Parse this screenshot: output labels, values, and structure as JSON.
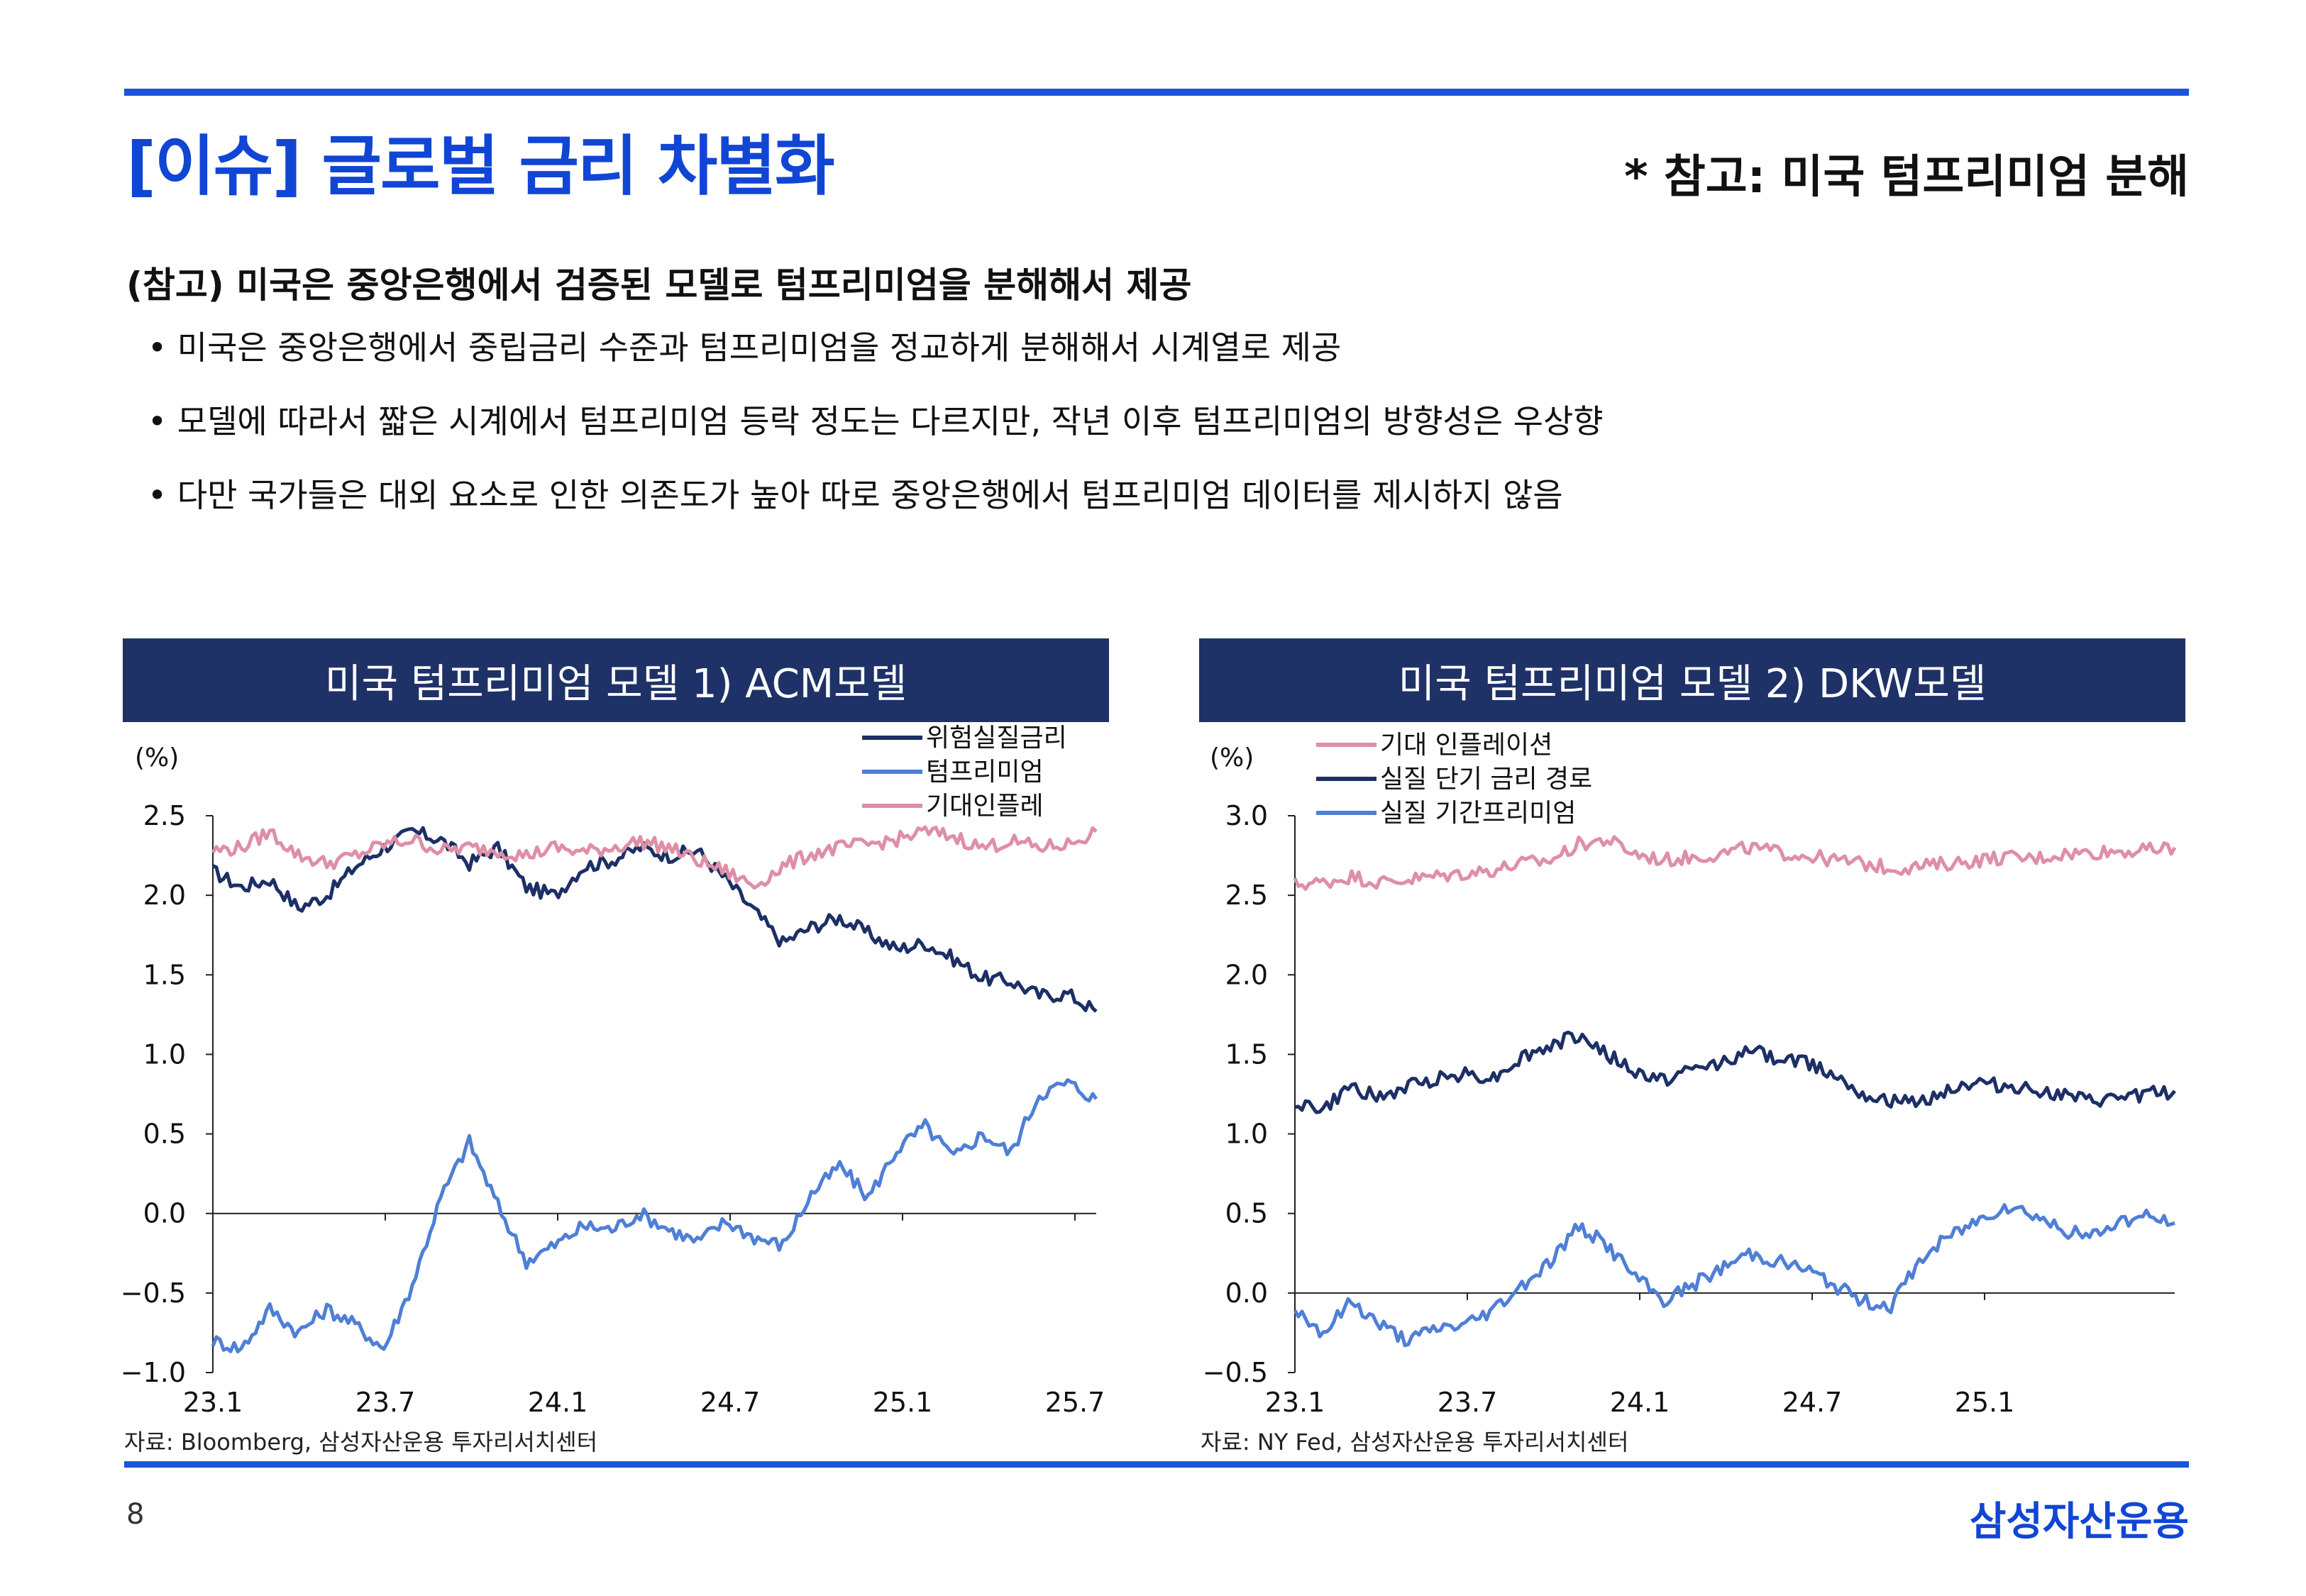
{
  "header": {
    "title": "[이슈] 글로벌 금리 차별화",
    "ref_title": "* 참고: 미국 텀프리미엄 분해"
  },
  "section": {
    "heading": "(참고) 미국은 중앙은행에서 검증된 모델로 텀프리미엄을 분해해서 제공",
    "bullets": [
      "미국은 중앙은행에서 중립금리 수준과 텀프리미엄을 정교하게 분해해서 시계열로 제공",
      "모델에 따라서 짧은 시계에서 텀프리미엄 등락 정도는 다르지만, 작년 이후 텀프리미엄의 방향성은 우상향",
      "다만 국가들은 대외 요소로 인한 의존도가 높아 따로 중앙은행에서 텀프리미엄 데이터를 제시하지 않음"
    ]
  },
  "colors": {
    "accent": "#1146d4",
    "panel_header": "#1f3267",
    "dark_navy": "#1c2f66",
    "blue": "#4f7fd6",
    "pink": "#de8fa6"
  },
  "chart_data": [
    {
      "type": "line",
      "title": "미국 텀프리미엄 모델 1) ACM모델",
      "unit_label": "(%)",
      "source": "자료: Bloomberg, 삼성자산운용 투자리서치센터",
      "x_ticks": [
        "23.1",
        "23.7",
        "24.1",
        "24.7",
        "25.1",
        "25.7"
      ],
      "x_range": [
        "2023-01",
        "2025-08"
      ],
      "y_ticks": [
        "2.5",
        "2.0",
        "1.5",
        "1.0",
        "0.5",
        "0.0",
        "-0.5",
        "-1.0"
      ],
      "ylim": [
        -1.0,
        2.5
      ],
      "zero_line": 0,
      "legend_position": "top-right",
      "x": [
        "2023-01",
        "2023-02",
        "2023-03",
        "2023-04",
        "2023-05",
        "2023-06",
        "2023-07",
        "2023-08",
        "2023-09",
        "2023-10",
        "2023-11",
        "2023-12",
        "2024-01",
        "2024-02",
        "2024-03",
        "2024-04",
        "2024-05",
        "2024-06",
        "2024-07",
        "2024-08",
        "2024-09",
        "2024-10",
        "2024-11",
        "2024-12",
        "2025-01",
        "2025-02",
        "2025-03",
        "2025-04",
        "2025-05",
        "2025-06",
        "2025-07",
        "2025-08"
      ],
      "series": [
        {
          "name": "위험실질금리",
          "color": "#1c2f66",
          "values": [
            2.15,
            2.05,
            2.1,
            1.92,
            2.0,
            2.18,
            2.3,
            2.4,
            2.35,
            2.2,
            2.3,
            2.05,
            2.0,
            2.18,
            2.22,
            2.3,
            2.25,
            2.28,
            2.1,
            1.9,
            1.7,
            1.8,
            1.86,
            1.76,
            1.66,
            1.7,
            1.6,
            1.48,
            1.46,
            1.37,
            1.38,
            1.27
          ]
        },
        {
          "name": "텀프리미엄",
          "color": "#4f7fd6",
          "values": [
            -0.8,
            -0.85,
            -0.6,
            -0.75,
            -0.6,
            -0.7,
            -0.85,
            -0.45,
            0.1,
            0.45,
            0.05,
            -0.3,
            -0.2,
            -0.08,
            -0.1,
            0.0,
            -0.1,
            -0.18,
            -0.05,
            -0.15,
            -0.2,
            0.12,
            0.3,
            0.1,
            0.4,
            0.55,
            0.35,
            0.5,
            0.38,
            0.75,
            0.82,
            0.72
          ]
        },
        {
          "name": "기대인플레",
          "color": "#de8fa6",
          "values": [
            2.28,
            2.3,
            2.4,
            2.25,
            2.2,
            2.25,
            2.32,
            2.35,
            2.28,
            2.3,
            2.28,
            2.25,
            2.3,
            2.27,
            2.3,
            2.34,
            2.3,
            2.22,
            2.15,
            2.06,
            2.18,
            2.26,
            2.3,
            2.32,
            2.35,
            2.4,
            2.37,
            2.3,
            2.34,
            2.3,
            2.32,
            2.4
          ]
        }
      ]
    },
    {
      "type": "line",
      "title": "미국 텀프리미엄 모델 2) DKW모델",
      "unit_label": "(%)",
      "source": "자료: NY Fed, 삼성자산운용 투자리서치센터",
      "x_ticks": [
        "23.1",
        "23.7",
        "24.1",
        "24.7",
        "25.1"
      ],
      "x_range": [
        "2023-01",
        "2025-08"
      ],
      "y_ticks": [
        "3.0",
        "2.5",
        "2.0",
        "1.5",
        "1.0",
        "0.5",
        "0.0",
        "-0.5"
      ],
      "ylim": [
        -0.5,
        3.0
      ],
      "zero_line": 0,
      "legend_position": "top-left",
      "x": [
        "2023-01",
        "2023-02",
        "2023-03",
        "2023-04",
        "2023-05",
        "2023-06",
        "2023-07",
        "2023-08",
        "2023-09",
        "2023-10",
        "2023-11",
        "2023-12",
        "2024-01",
        "2024-02",
        "2024-03",
        "2024-04",
        "2024-05",
        "2024-06",
        "2024-07",
        "2024-08",
        "2024-09",
        "2024-10",
        "2024-11",
        "2024-12",
        "2025-01",
        "2025-02",
        "2025-03",
        "2025-04",
        "2025-05",
        "2025-06",
        "2025-07",
        "2025-08"
      ],
      "series": [
        {
          "name": "기대 인플레이션",
          "color": "#de8fa6",
          "values": [
            2.57,
            2.58,
            2.62,
            2.58,
            2.6,
            2.62,
            2.64,
            2.66,
            2.7,
            2.72,
            2.82,
            2.85,
            2.76,
            2.72,
            2.74,
            2.76,
            2.8,
            2.77,
            2.75,
            2.72,
            2.7,
            2.67,
            2.68,
            2.7,
            2.72,
            2.74,
            2.73,
            2.76,
            2.77,
            2.78,
            2.78,
            2.8
          ]
        },
        {
          "name": "실질 단기 금리 경로",
          "color": "#1c2f66",
          "values": [
            1.2,
            1.15,
            1.3,
            1.22,
            1.3,
            1.35,
            1.38,
            1.35,
            1.48,
            1.55,
            1.62,
            1.5,
            1.38,
            1.34,
            1.4,
            1.45,
            1.52,
            1.48,
            1.45,
            1.38,
            1.26,
            1.2,
            1.2,
            1.28,
            1.32,
            1.3,
            1.28,
            1.24,
            1.2,
            1.22,
            1.25,
            1.27
          ]
        },
        {
          "name": "실질 기간프리미엄",
          "color": "#4f7fd6",
          "values": [
            -0.1,
            -0.25,
            -0.05,
            -0.2,
            -0.3,
            -0.22,
            -0.2,
            -0.1,
            0.05,
            0.2,
            0.42,
            0.3,
            0.1,
            -0.05,
            0.05,
            0.15,
            0.25,
            0.2,
            0.15,
            0.05,
            -0.05,
            -0.08,
            0.2,
            0.35,
            0.45,
            0.55,
            0.5,
            0.4,
            0.35,
            0.45,
            0.48,
            0.44
          ]
        }
      ]
    }
  ],
  "footer": {
    "page_number": "8",
    "brand": "삼성자산운용"
  }
}
